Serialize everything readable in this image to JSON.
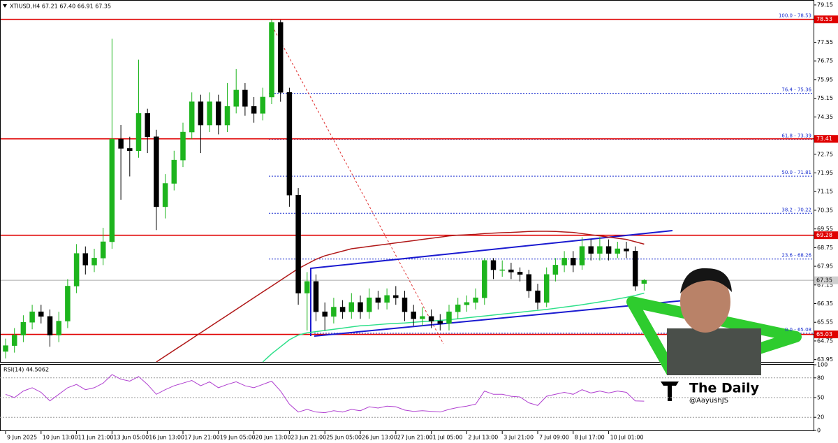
{
  "chart_data": {
    "type": "candlestick",
    "title": "XTIUSD,H4 67.21 67.40 66.91 67.35",
    "x_labels": [
      "9 Jun 2025",
      "10 Jun 13:00",
      "11 Jun 21:00",
      "13 Jun 05:00",
      "16 Jun 13:00",
      "17 Jun 21:00",
      "19 Jun 05:00",
      "20 Jun 13:00",
      "23 Jun 21:00",
      "25 Jun 05:00",
      "26 Jun 13:00",
      "27 Jun 21:00",
      "1 Jul 05:00",
      "2 Jul 13:00",
      "3 Jul 21:00",
      "7 Jul 09:00",
      "8 Jul 17:00",
      "10 Jul 01:00"
    ],
    "open": [
      64.3,
      64.55,
      65.0,
      65.55,
      66.0,
      65.8,
      65.0,
      65.6,
      67.1,
      68.5,
      68.0,
      68.3,
      69.0,
      73.4,
      73.0,
      72.9,
      74.5,
      73.5,
      70.5,
      71.5,
      72.5,
      73.7,
      75.0,
      74.0,
      75.0,
      74.0,
      74.8,
      75.5,
      74.8,
      74.5,
      75.2,
      78.4,
      75.4,
      71.0,
      66.8,
      67.3,
      66.0,
      65.8,
      66.2,
      66.0,
      66.4,
      66.0,
      66.6,
      66.4,
      66.7,
      66.6,
      66.0,
      65.7,
      65.8,
      65.6,
      65.5,
      66.0,
      66.3,
      66.4,
      66.6,
      68.2,
      67.8,
      67.8,
      67.7,
      67.6,
      66.9,
      66.4,
      67.6,
      68.0,
      68.3,
      68.0,
      68.8,
      68.5,
      68.8,
      68.5,
      68.7,
      68.6,
      67.21
    ],
    "high": [
      64.85,
      65.3,
      65.85,
      66.3,
      66.3,
      66.1,
      66.0,
      67.4,
      68.9,
      68.8,
      68.7,
      69.6,
      77.7,
      74.0,
      73.5,
      76.8,
      74.7,
      73.8,
      71.9,
      72.9,
      74.1,
      75.4,
      75.3,
      75.4,
      75.3,
      75.8,
      76.4,
      75.8,
      75.2,
      75.6,
      78.53,
      78.5,
      75.6,
      71.3,
      67.7,
      67.6,
      66.4,
      66.6,
      66.5,
      66.8,
      66.7,
      67.0,
      66.9,
      67.0,
      67.1,
      66.9,
      66.3,
      66.2,
      66.1,
      65.9,
      66.3,
      66.6,
      66.7,
      67.0,
      68.3,
      68.3,
      68.2,
      68.1,
      67.9,
      67.8,
      67.2,
      67.9,
      68.3,
      68.6,
      68.6,
      69.2,
      69.1,
      69.2,
      69.1,
      69.0,
      69.0,
      68.8,
      67.4
    ],
    "low": [
      64.0,
      64.25,
      64.7,
      65.25,
      65.5,
      64.5,
      64.7,
      65.3,
      66.8,
      67.6,
      67.7,
      68.0,
      68.7,
      70.8,
      71.8,
      72.6,
      72.8,
      69.5,
      70.0,
      71.2,
      72.2,
      73.4,
      72.8,
      73.7,
      73.6,
      73.7,
      74.5,
      74.4,
      74.1,
      74.2,
      74.9,
      75.0,
      70.5,
      66.3,
      65.2,
      65.6,
      65.2,
      65.5,
      65.7,
      65.7,
      65.7,
      65.7,
      66.1,
      66.1,
      66.3,
      65.6,
      65.4,
      65.4,
      65.3,
      65.2,
      65.2,
      65.7,
      66.0,
      66.1,
      66.3,
      67.4,
      67.5,
      67.4,
      67.3,
      66.6,
      66.1,
      66.2,
      67.3,
      67.7,
      67.7,
      67.8,
      68.2,
      68.2,
      68.2,
      68.3,
      68.3,
      66.9,
      66.91
    ],
    "close": [
      64.55,
      65.0,
      65.55,
      66.0,
      65.8,
      65.0,
      65.6,
      67.1,
      68.5,
      68.0,
      68.3,
      69.0,
      73.4,
      73.0,
      72.9,
      74.5,
      73.5,
      70.5,
      71.5,
      72.5,
      73.7,
      75.0,
      74.0,
      75.0,
      74.0,
      74.8,
      75.5,
      74.8,
      74.5,
      75.2,
      78.4,
      75.4,
      71.0,
      66.8,
      67.3,
      66.0,
      65.8,
      66.2,
      66.0,
      66.4,
      66.0,
      66.6,
      66.4,
      66.7,
      66.6,
      66.0,
      65.7,
      65.8,
      65.6,
      65.5,
      66.0,
      66.3,
      66.4,
      66.6,
      68.2,
      67.8,
      67.8,
      67.7,
      67.6,
      66.9,
      66.4,
      67.6,
      68.0,
      68.3,
      68.0,
      68.8,
      68.5,
      68.8,
      68.5,
      68.7,
      68.6,
      67.1,
      67.35
    ],
    "bull_color": "#1db41d",
    "bear_color": "#000000",
    "ylim": [
      63.82,
      79.36
    ],
    "yticks": [
      79.15,
      77.55,
      76.75,
      75.95,
      75.15,
      74.35,
      72.75,
      71.95,
      71.15,
      70.35,
      69.55,
      68.75,
      67.95,
      67.15,
      66.35,
      65.55,
      64.75,
      63.95
    ],
    "levels": [
      78.53,
      73.41,
      69.28,
      65.03
    ],
    "level_color": "#e00000",
    "fib_levels": [
      {
        "value": 78.53,
        "label": "100.0 - 78.53"
      },
      {
        "value": 75.36,
        "label": "76.4 - 75.36"
      },
      {
        "value": 73.39,
        "label": "61.8 - 73.39"
      },
      {
        "value": 71.81,
        "label": "50.0 - 71.81"
      },
      {
        "value": 70.22,
        "label": "38.2 - 70.22"
      },
      {
        "value": 68.26,
        "label": "23.6 - 68.26"
      },
      {
        "value": 65.08,
        "label": "0.0 - 65.08"
      }
    ],
    "fib_color": "#1a2fd0",
    "last_price": 67.35,
    "moving_averages": [
      {
        "color": "#b01818",
        "values": [
          null,
          null,
          null,
          null,
          null,
          null,
          null,
          null,
          null,
          null,
          null,
          null,
          null,
          null,
          null,
          null,
          null,
          63.85,
          64.1,
          64.35,
          64.6,
          64.85,
          65.1,
          65.35,
          65.6,
          65.85,
          66.1,
          66.35,
          66.6,
          66.85,
          67.1,
          67.35,
          67.6,
          67.85,
          68.05,
          68.25,
          68.4,
          68.5,
          68.6,
          68.7,
          68.75,
          68.8,
          68.85,
          68.9,
          68.95,
          69.0,
          69.05,
          69.1,
          69.15,
          69.2,
          69.25,
          69.28,
          69.3,
          69.32,
          69.35,
          69.37,
          69.39,
          69.4,
          69.42,
          69.44,
          69.45,
          69.45,
          69.44,
          69.42,
          69.4,
          69.35,
          69.3,
          69.25,
          69.2,
          69.15,
          69.1,
          69.0,
          68.9
        ]
      },
      {
        "color": "#2ee08a",
        "values": [
          null,
          null,
          null,
          null,
          null,
          null,
          null,
          null,
          null,
          null,
          null,
          null,
          null,
          null,
          null,
          null,
          null,
          null,
          null,
          null,
          null,
          null,
          null,
          null,
          null,
          null,
          null,
          null,
          null,
          63.85,
          64.2,
          64.5,
          64.8,
          65.0,
          65.1,
          65.15,
          65.2,
          65.25,
          65.3,
          65.35,
          65.4,
          65.42,
          65.45,
          65.48,
          65.5,
          65.52,
          65.55,
          65.58,
          65.6,
          65.63,
          65.66,
          65.7,
          65.74,
          65.78,
          65.82,
          65.86,
          65.9,
          65.94,
          65.98,
          66.02,
          66.06,
          66.1,
          66.15,
          66.2,
          66.25,
          66.3,
          66.36,
          66.42,
          66.48,
          66.55,
          66.62,
          66.7,
          66.8
        ]
      }
    ],
    "rsi": {
      "label": "RSI(14) 44.5062",
      "color": "#b040d0",
      "ylim": [
        0,
        100
      ],
      "yticks": [
        100,
        80,
        50,
        20,
        0
      ],
      "values": [
        55,
        50,
        60,
        65,
        58,
        45,
        55,
        65,
        70,
        62,
        65,
        72,
        85,
        78,
        75,
        82,
        70,
        55,
        62,
        68,
        72,
        76,
        68,
        74,
        65,
        70,
        74,
        68,
        65,
        70,
        75,
        60,
        40,
        28,
        32,
        28,
        27,
        30,
        28,
        32,
        30,
        36,
        34,
        37,
        36,
        31,
        29,
        30,
        29,
        28,
        32,
        35,
        37,
        40,
        60,
        55,
        55,
        52,
        51,
        42,
        38,
        52,
        55,
        58,
        55,
        62,
        57,
        60,
        57,
        60,
        58,
        45,
        44.5062
      ]
    }
  },
  "overlay": {
    "title": "The Daily",
    "handle": "@AayushJS"
  }
}
